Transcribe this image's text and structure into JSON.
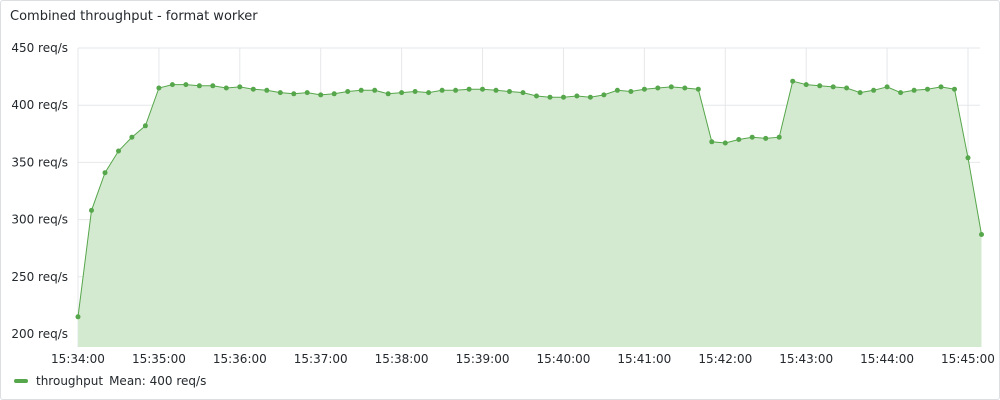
{
  "panel": {
    "title": "Combined throughput - format worker"
  },
  "legend": {
    "series_name": "throughput",
    "stat": "Mean: 400 req/s"
  },
  "colors": {
    "line": "#56a64b",
    "fill": "#d4ead0",
    "grid": "#e6e7e9",
    "text": "#24292e"
  },
  "chart_data": {
    "type": "area",
    "title": "Combined throughput - format worker",
    "unit": "req/s",
    "ylim": [
      190,
      450
    ],
    "yticks": [
      450,
      400,
      350,
      300,
      250,
      200
    ],
    "ytick_labels": [
      "450 req/s",
      "400 req/s",
      "350 req/s",
      "300 req/s",
      "250 req/s",
      "200 req/s"
    ],
    "xlim": [
      "15:34:00",
      "15:45:00"
    ],
    "xticks": [
      "15:34:00",
      "15:35:00",
      "15:36:00",
      "15:37:00",
      "15:38:00",
      "15:39:00",
      "15:40:00",
      "15:41:00",
      "15:42:00",
      "15:43:00",
      "15:44:00",
      "15:45:00"
    ],
    "grid": true,
    "legend_position": "bottom-left",
    "series": [
      {
        "name": "throughput",
        "x": [
          "15:34:00",
          "15:34:10",
          "15:34:20",
          "15:34:30",
          "15:34:40",
          "15:34:50",
          "15:35:00",
          "15:35:10",
          "15:35:20",
          "15:35:30",
          "15:35:40",
          "15:35:50",
          "15:36:00",
          "15:36:10",
          "15:36:20",
          "15:36:30",
          "15:36:40",
          "15:36:50",
          "15:37:00",
          "15:37:10",
          "15:37:20",
          "15:37:30",
          "15:37:40",
          "15:37:50",
          "15:38:00",
          "15:38:10",
          "15:38:20",
          "15:38:30",
          "15:38:40",
          "15:38:50",
          "15:39:00",
          "15:39:10",
          "15:39:20",
          "15:39:30",
          "15:39:40",
          "15:39:50",
          "15:40:00",
          "15:40:10",
          "15:40:20",
          "15:40:30",
          "15:40:40",
          "15:40:50",
          "15:41:00",
          "15:41:10",
          "15:41:20",
          "15:41:30",
          "15:41:40",
          "15:41:50",
          "15:42:00",
          "15:42:10",
          "15:42:20",
          "15:42:30",
          "15:42:40",
          "15:42:50",
          "15:43:00",
          "15:43:10",
          "15:43:20",
          "15:43:30",
          "15:43:40",
          "15:43:50",
          "15:44:00",
          "15:44:10",
          "15:44:20",
          "15:44:30",
          "15:44:40",
          "15:44:50",
          "15:45:00",
          "15:45:10"
        ],
        "values": [
          215,
          308,
          341,
          360,
          372,
          382,
          415,
          418,
          418,
          417,
          417,
          415,
          416,
          414,
          413,
          411,
          410,
          411,
          409,
          410,
          412,
          413,
          413,
          410,
          411,
          412,
          411,
          413,
          413,
          414,
          414,
          413,
          412,
          411,
          408,
          407,
          407,
          408,
          407,
          409,
          413,
          412,
          414,
          415,
          416,
          415,
          414,
          368,
          367,
          370,
          372,
          371,
          372,
          421,
          418,
          417,
          416,
          415,
          411,
          413,
          416,
          411,
          413,
          414,
          416,
          414,
          354,
          287
        ]
      }
    ]
  }
}
